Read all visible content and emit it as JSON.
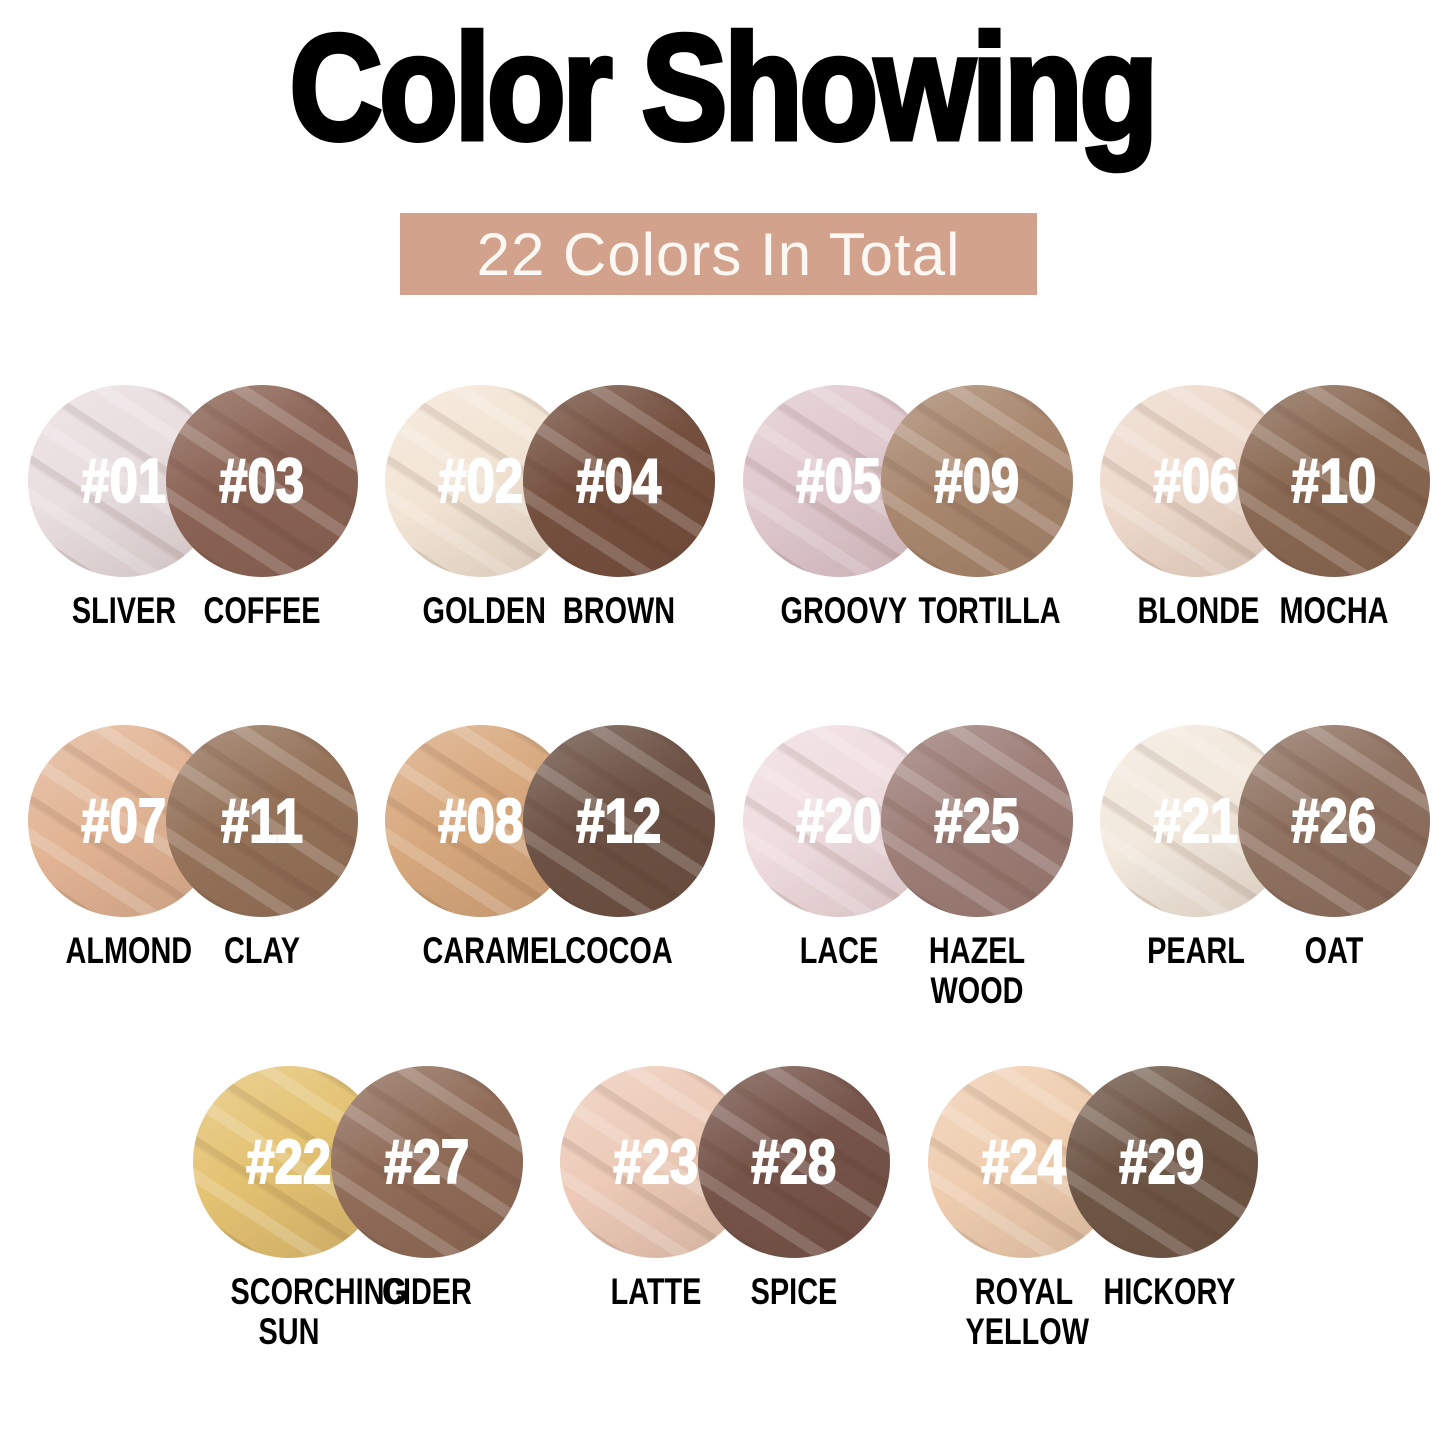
{
  "title": "Color Showing",
  "subtitle": "22 Colors In Total",
  "colors": {
    "subtitle_bg": "#D2A28C",
    "subtitle_text": "#FBF7F2",
    "title_text": "#000000",
    "shade_number_text": "#FFFFFF",
    "shade_name_text": "#000000"
  },
  "rows": [
    {
      "pairs": [
        {
          "left": {
            "number": "#01",
            "name": "SLIVER",
            "color": "#E9DEE0"
          },
          "right": {
            "number": "#03",
            "name": "COFFEE",
            "color": "#8B6455"
          }
        },
        {
          "left": {
            "number": "#02",
            "name": "GOLDEN",
            "color": "#F3E5D5"
          },
          "right": {
            "number": "#04",
            "name": "BROWN",
            "color": "#75503F"
          }
        },
        {
          "left": {
            "number": "#05",
            "name": "GROOVY",
            "color": "#E0C9CF"
          },
          "right": {
            "number": "#09",
            "name": "TORTILLA",
            "color": "#A9886F"
          }
        },
        {
          "left": {
            "number": "#06",
            "name": "BLONDE",
            "color": "#EEDACC"
          },
          "right": {
            "number": "#10",
            "name": "MOCHA",
            "color": "#8A6953"
          }
        }
      ]
    },
    {
      "pairs": [
        {
          "left": {
            "number": "#07",
            "name": "ALMOND",
            "color": "#E2B595"
          },
          "right": {
            "number": "#11",
            "name": "CLAY",
            "color": "#95735A"
          }
        },
        {
          "left": {
            "number": "#08",
            "name": "CARAMEL",
            "color": "#D8A97E"
          },
          "right": {
            "number": "#12",
            "name": "COCOA",
            "color": "#6D5245"
          }
        },
        {
          "left": {
            "number": "#20",
            "name": "LACE",
            "color": "#F0DDE0"
          },
          "right": {
            "number": "#25",
            "name": "HAZEL WOOD",
            "color": "#9E7F78"
          }
        },
        {
          "left": {
            "number": "#21",
            "name": "PEARL",
            "color": "#F3E9DD"
          },
          "right": {
            "number": "#26",
            "name": "OAT",
            "color": "#8F7261"
          }
        }
      ]
    },
    {
      "pairs": [
        {
          "left": {
            "number": "#22",
            "name": "SCORCHING SUN",
            "color": "#E4C373"
          },
          "right": {
            "number": "#27",
            "name": "CIDER",
            "color": "#906D59"
          }
        },
        {
          "left": {
            "number": "#23",
            "name": "LATTE",
            "color": "#EDCBB8"
          },
          "right": {
            "number": "#28",
            "name": "SPICE",
            "color": "#76544A"
          }
        },
        {
          "left": {
            "number": "#24",
            "name": "ROYAL YELLOW",
            "color": "#EFCEB0"
          },
          "right": {
            "number": "#29",
            "name": "HICKORY",
            "color": "#6F5747"
          }
        }
      ]
    }
  ]
}
